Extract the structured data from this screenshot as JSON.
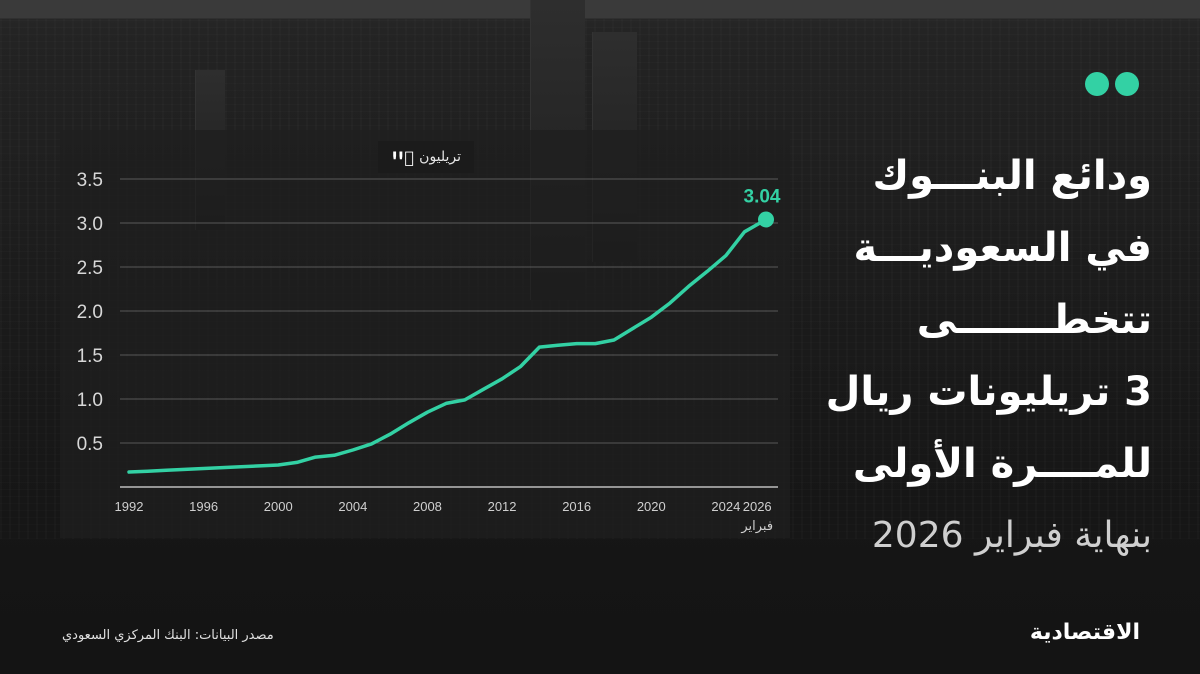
{
  "header": {
    "title_lines": [
      "ودائع البنـــوك",
      "في السعوديـــة",
      "تتخطـــــــى",
      "3 تريليونات ريال",
      "للمــــرة الأولى"
    ],
    "subtitle": "بنهاية فبراير 2026",
    "accent_color": "#33d1a4"
  },
  "chart": {
    "unit_label": "تريليون",
    "unit_icon": "saudi-riyal-icon",
    "last_value_label": "3.04",
    "x_sub_label": "فبراير"
  },
  "footer": {
    "source": "مصدر البيانات: البنك المركزي السعودي",
    "logo": "الاقتصادية"
  },
  "chart_data": {
    "type": "line",
    "title": "ودائع البنوك في السعودية تتخطى 3 تريليونات ريال للمرة الأولى",
    "subtitle": "بنهاية فبراير 2026",
    "xlabel": "",
    "ylabel": "تريليون ريال",
    "ylim": [
      0,
      3.5
    ],
    "yticks": [
      0.5,
      1.0,
      1.5,
      2.0,
      2.5,
      3.0,
      3.5
    ],
    "xticks": [
      "1992",
      "1996",
      "2000",
      "2004",
      "2008",
      "2012",
      "2016",
      "2020",
      "2024",
      "2026 فبراير"
    ],
    "grid": true,
    "legend": "none",
    "annotations": [
      {
        "x": 2026,
        "y": 3.04,
        "text": "3.04"
      }
    ],
    "series": [
      {
        "name": "ودائع البنوك",
        "color": "#33d1a4",
        "x": [
          1992,
          1993,
          1994,
          1995,
          1996,
          1997,
          1998,
          1999,
          2000,
          2001,
          2002,
          2003,
          2004,
          2005,
          2006,
          2007,
          2008,
          2009,
          2010,
          2011,
          2012,
          2013,
          2014,
          2015,
          2016,
          2017,
          2018,
          2019,
          2020,
          2021,
          2022,
          2023,
          2024,
          2025,
          2026
        ],
        "values": [
          0.17,
          0.18,
          0.19,
          0.2,
          0.21,
          0.22,
          0.23,
          0.24,
          0.25,
          0.28,
          0.34,
          0.36,
          0.42,
          0.49,
          0.6,
          0.73,
          0.85,
          0.95,
          0.99,
          1.11,
          1.23,
          1.37,
          1.59,
          1.61,
          1.63,
          1.63,
          1.67,
          1.8,
          1.93,
          2.09,
          2.28,
          2.45,
          2.63,
          2.9,
          3.04
        ]
      }
    ]
  }
}
